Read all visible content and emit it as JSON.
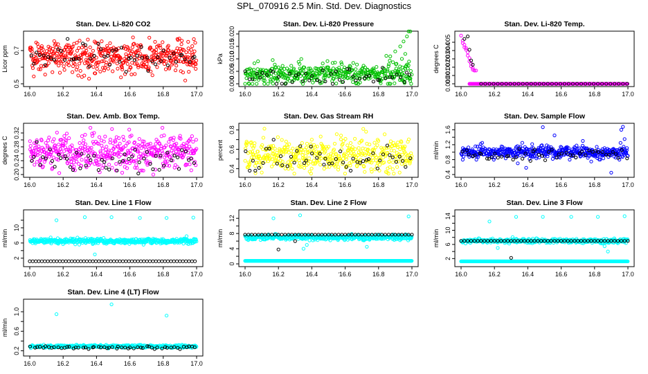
{
  "figure_title": "SPL_070916  2.5 Min. Std. Dev. Diagnostics",
  "colors": {
    "red": "#ff0000",
    "green": "#00c000",
    "magenta": "#ff00ff",
    "yellow": "#ffff00",
    "blue": "#0000ff",
    "cyan": "#00ffff",
    "black": "#000000"
  },
  "chart_data": [
    {
      "type": "scatter",
      "title": "Stan. Dev. Li-820 CO2",
      "ylabel": "Licor ppm",
      "xlim": [
        16.0,
        17.0
      ],
      "ylim": [
        0.5,
        0.8
      ],
      "x_ticks": [
        16.0,
        16.2,
        16.4,
        16.6,
        16.8,
        17.0
      ],
      "y_ticks": [
        0.5,
        0.6,
        0.7
      ],
      "y_tick_labels": [
        "0.5",
        "",
        "0.7"
      ],
      "series": [
        {
          "color": "red",
          "kind": "dense",
          "count": 460,
          "center": 0.66,
          "spread": 0.05,
          "min": 0.5,
          "max": 0.8
        },
        {
          "color": "black",
          "kind": "sparse",
          "count": 55,
          "center": 0.66,
          "spread": 0.04,
          "min": 0.55,
          "max": 0.77
        }
      ]
    },
    {
      "type": "scatter",
      "title": "Stan. Dev. Li-820 Pressure",
      "ylabel": "kPa",
      "xlim": [
        16.0,
        17.0
      ],
      "ylim": [
        0.0,
        0.02
      ],
      "x_ticks": [
        16.0,
        16.2,
        16.4,
        16.6,
        16.8,
        17.0
      ],
      "y_ticks": [
        0.0,
        0.005,
        0.01,
        0.015,
        0.02
      ],
      "y_tick_labels": [
        "0.000",
        "0.005",
        "0.010",
        "0.015",
        "0.020"
      ],
      "series": [
        {
          "color": "green",
          "kind": "dense",
          "count": 420,
          "center": 0.0042,
          "spread": 0.0024,
          "min": 0.0,
          "max": 0.0125
        },
        {
          "color": "black",
          "kind": "sparse",
          "count": 50,
          "center": 0.003,
          "spread": 0.0018,
          "min": 0.0,
          "max": 0.008
        },
        {
          "color": "green",
          "kind": "points",
          "x": [
            16.87,
            16.9,
            16.93,
            16.95,
            16.97,
            16.98,
            16.99,
            16.96,
            16.94
          ],
          "y": [
            0.011,
            0.013,
            0.015,
            0.017,
            0.019,
            0.021,
            0.021,
            0.012,
            0.01
          ]
        }
      ]
    },
    {
      "type": "scatter",
      "title": "Stan. Dev. Li-820 Temp.",
      "ylabel": "degrees C",
      "xlim": [
        16.0,
        17.0
      ],
      "ylim": [
        0.0,
        0.006
      ],
      "x_ticks": [
        16.0,
        16.2,
        16.4,
        16.6,
        16.8,
        17.0
      ],
      "y_ticks": [
        0.0,
        0.001,
        0.002,
        0.003,
        0.004,
        0.005
      ],
      "y_tick_labels": [
        "0.000",
        "0.001",
        "0.002",
        "0.003",
        "0.004",
        "0.005"
      ],
      "series": [
        {
          "color": "magenta",
          "kind": "points",
          "x": [
            16.0,
            16.01,
            16.01,
            16.02,
            16.02,
            16.03,
            16.03,
            16.04,
            16.04,
            16.05,
            16.05,
            16.06,
            16.06,
            16.07,
            16.07,
            16.08,
            16.08,
            16.09
          ],
          "y": [
            0.0058,
            0.0052,
            0.0049,
            0.0047,
            0.0044,
            0.0043,
            0.0041,
            0.0038,
            0.0034,
            0.0031,
            0.0027,
            0.0024,
            0.0021,
            0.0019,
            0.0017,
            0.0016,
            0.0016,
            0.0016
          ]
        },
        {
          "color": "black",
          "kind": "points",
          "x": [
            16.02,
            16.04,
            16.05,
            16.06,
            16.07
          ],
          "y": [
            0.0054,
            0.0057,
            0.0041,
            0.0028,
            0.0023
          ]
        },
        {
          "color": "magenta",
          "kind": "flat",
          "x_start": 16.05,
          "x_end": 17.0,
          "y": 0.0,
          "step": 0.004
        },
        {
          "color": "black",
          "kind": "flat",
          "x_start": 16.12,
          "x_end": 17.0,
          "y": 0.0,
          "step": 0.025
        }
      ]
    },
    {
      "type": "scatter",
      "title": "Stan. Dev. Amb. Box Temp.",
      "ylabel": "degrees C",
      "xlim": [
        16.0,
        17.0
      ],
      "ylim": [
        0.2,
        0.34
      ],
      "x_ticks": [
        16.0,
        16.2,
        16.4,
        16.6,
        16.8,
        17.0
      ],
      "y_ticks": [
        0.2,
        0.22,
        0.24,
        0.26,
        0.28,
        0.3,
        0.32
      ],
      "y_tick_labels": [
        "0.20",
        "",
        "0.24",
        "",
        "0.28",
        "",
        "0.32"
      ],
      "series": [
        {
          "color": "magenta",
          "kind": "dense",
          "count": 460,
          "center": 0.265,
          "spread": 0.025,
          "min": 0.2,
          "max": 0.335
        },
        {
          "color": "black",
          "kind": "sparse",
          "count": 55,
          "center": 0.245,
          "spread": 0.02,
          "min": 0.2,
          "max": 0.3
        }
      ]
    },
    {
      "type": "scatter",
      "title": "Stan. Dev. Gas Stream RH",
      "ylabel": "percent",
      "xlim": [
        16.0,
        17.0
      ],
      "ylim": [
        0.34,
        0.84
      ],
      "x_ticks": [
        16.0,
        16.2,
        16.4,
        16.6,
        16.8,
        17.0
      ],
      "y_ticks": [
        0.4,
        0.5,
        0.6,
        0.7,
        0.8
      ],
      "y_tick_labels": [
        "0.4",
        "",
        "0.6",
        "",
        "0.8"
      ],
      "series": [
        {
          "color": "yellow",
          "kind": "dense",
          "count": 440,
          "center": 0.54,
          "spread": 0.09,
          "min": 0.35,
          "max": 0.84
        },
        {
          "color": "black",
          "kind": "sparse",
          "count": 50,
          "center": 0.5,
          "spread": 0.07,
          "min": 0.38,
          "max": 0.7
        }
      ]
    },
    {
      "type": "scatter",
      "title": "Stan. Dev. Sample Flow",
      "ylabel": "ml/min",
      "xlim": [
        16.0,
        17.0
      ],
      "ylim": [
        0.4,
        1.7
      ],
      "x_ticks": [
        16.0,
        16.2,
        16.4,
        16.6,
        16.8,
        17.0
      ],
      "y_ticks": [
        0.4,
        0.6,
        0.8,
        1.0,
        1.2,
        1.4,
        1.6
      ],
      "y_tick_labels": [
        "0.4",
        "",
        "0.8",
        "",
        "1.2",
        "",
        "1.6"
      ],
      "series": [
        {
          "color": "blue",
          "kind": "dense",
          "count": 480,
          "center": 1.0,
          "spread": 0.08,
          "min": 0.8,
          "max": 1.25
        },
        {
          "color": "blue",
          "kind": "points",
          "x": [
            16.34,
            16.39,
            16.49,
            16.56,
            16.73,
            16.78,
            16.9,
            16.96,
            16.97,
            16.98
          ],
          "y": [
            0.7,
            0.58,
            1.67,
            1.45,
            1.3,
            0.75,
            0.45,
            1.6,
            1.68,
            1.35
          ]
        },
        {
          "color": "black",
          "kind": "sparse",
          "count": 50,
          "center": 0.95,
          "spread": 0.07,
          "min": 0.65,
          "max": 1.15
        }
      ]
    },
    {
      "type": "scatter",
      "title": "Stan. Dev. Line 1 Flow",
      "ylabel": "ml/min",
      "xlim": [
        16.0,
        17.0
      ],
      "ylim": [
        0.5,
        14.0
      ],
      "x_ticks": [
        16.0,
        16.2,
        16.4,
        16.6,
        16.8,
        17.0
      ],
      "y_ticks": [
        2,
        4,
        6,
        8,
        10,
        12
      ],
      "y_tick_labels": [
        "2",
        "",
        "6",
        "",
        "10",
        ""
      ],
      "series": [
        {
          "color": "cyan",
          "kind": "dense",
          "count": 480,
          "center": 6.5,
          "spread": 0.35,
          "min": 5.0,
          "max": 8.0
        },
        {
          "color": "cyan",
          "kind": "points",
          "x": [
            16.16,
            16.33,
            16.49,
            16.66,
            16.82,
            16.94,
            16.98,
            16.39
          ],
          "y": [
            12.0,
            12.8,
            12.8,
            12.6,
            12.6,
            7.8,
            12.7,
            3.0
          ]
        },
        {
          "color": "black",
          "kind": "flat",
          "x_start": 16.0,
          "x_end": 17.0,
          "y": 1.2,
          "step": 0.018
        }
      ]
    },
    {
      "type": "scatter",
      "title": "Stan. Dev. Line 2 Flow",
      "ylabel": "ml/min",
      "xlim": [
        16.0,
        17.0
      ],
      "ylim": [
        0.0,
        13.5
      ],
      "x_ticks": [
        16.0,
        16.2,
        16.4,
        16.6,
        16.8,
        17.0
      ],
      "y_ticks": [
        0,
        2,
        4,
        6,
        8,
        10,
        12
      ],
      "y_tick_labels": [
        "0",
        "",
        "4",
        "",
        "8",
        "",
        "12"
      ],
      "series": [
        {
          "color": "cyan",
          "kind": "dense",
          "count": 420,
          "center": 7.0,
          "spread": 0.35,
          "min": 5.5,
          "max": 8.5
        },
        {
          "color": "cyan",
          "kind": "flat",
          "x_start": 16.0,
          "x_end": 17.0,
          "y": 0.8,
          "step": 0.003
        },
        {
          "color": "cyan",
          "kind": "points",
          "x": [
            16.33,
            16.35,
            16.37,
            16.73,
            16.98,
            16.17
          ],
          "y": [
            12.8,
            4.0,
            5.0,
            4.5,
            12.5,
            12.0
          ]
        },
        {
          "color": "black",
          "kind": "flat",
          "x_start": 16.0,
          "x_end": 17.0,
          "y": 7.7,
          "step": 0.02
        },
        {
          "color": "black",
          "kind": "points",
          "x": [
            16.2,
            16.3
          ],
          "y": [
            3.8,
            6.0
          ]
        }
      ]
    },
    {
      "type": "scatter",
      "title": "Stan. Dev. Line 3 Flow",
      "ylabel": "ml/min",
      "xlim": [
        16.0,
        17.0
      ],
      "ylim": [
        0.5,
        15.0
      ],
      "x_ticks": [
        16.0,
        16.2,
        16.4,
        16.6,
        16.8,
        17.0
      ],
      "y_ticks": [
        2,
        4,
        6,
        8,
        10,
        12,
        14
      ],
      "y_tick_labels": [
        "2",
        "",
        "6",
        "",
        "10",
        "",
        "14"
      ],
      "series": [
        {
          "color": "cyan",
          "kind": "dense",
          "count": 420,
          "center": 7.0,
          "spread": 0.3,
          "min": 5.5,
          "max": 8.5
        },
        {
          "color": "cyan",
          "kind": "flat",
          "x_start": 16.0,
          "x_end": 17.0,
          "y": 1.2,
          "step": 0.003
        },
        {
          "color": "cyan",
          "kind": "points",
          "x": [
            16.17,
            16.33,
            16.49,
            16.66,
            16.82,
            16.98,
            16.22,
            16.86,
            16.88
          ],
          "y": [
            12.5,
            13.8,
            13.8,
            13.8,
            13.8,
            14.0,
            5.0,
            5.5,
            4.0
          ]
        },
        {
          "color": "black",
          "kind": "flat",
          "x_start": 16.0,
          "x_end": 17.0,
          "y": 7.0,
          "step": 0.02
        },
        {
          "color": "black",
          "kind": "points",
          "x": [
            16.3
          ],
          "y": [
            2.2
          ]
        }
      ]
    },
    {
      "type": "scatter",
      "title": "Stan. Dev. Line 4 (LT) Flow",
      "ylabel": "ml/min",
      "xlim": [
        16.0,
        17.0
      ],
      "ylim": [
        0.15,
        1.2
      ],
      "x_ticks": [
        16.0,
        16.2,
        16.4,
        16.6,
        16.8,
        17.0
      ],
      "y_ticks": [
        0.2,
        0.4,
        0.6,
        0.8,
        1.0
      ],
      "y_tick_labels": [
        "0.2",
        "",
        "0.6",
        "",
        "1.0"
      ],
      "series": [
        {
          "color": "cyan",
          "kind": "dense",
          "count": 420,
          "center": 0.29,
          "spread": 0.015,
          "min": 0.24,
          "max": 0.34
        },
        {
          "color": "cyan",
          "kind": "points",
          "x": [
            16.16,
            16.49,
            16.82
          ],
          "y": [
            0.95,
            1.15,
            0.92
          ]
        },
        {
          "color": "black",
          "kind": "sparse",
          "count": 55,
          "center": 0.27,
          "spread": 0.015,
          "min": 0.23,
          "max": 0.32
        }
      ]
    }
  ]
}
